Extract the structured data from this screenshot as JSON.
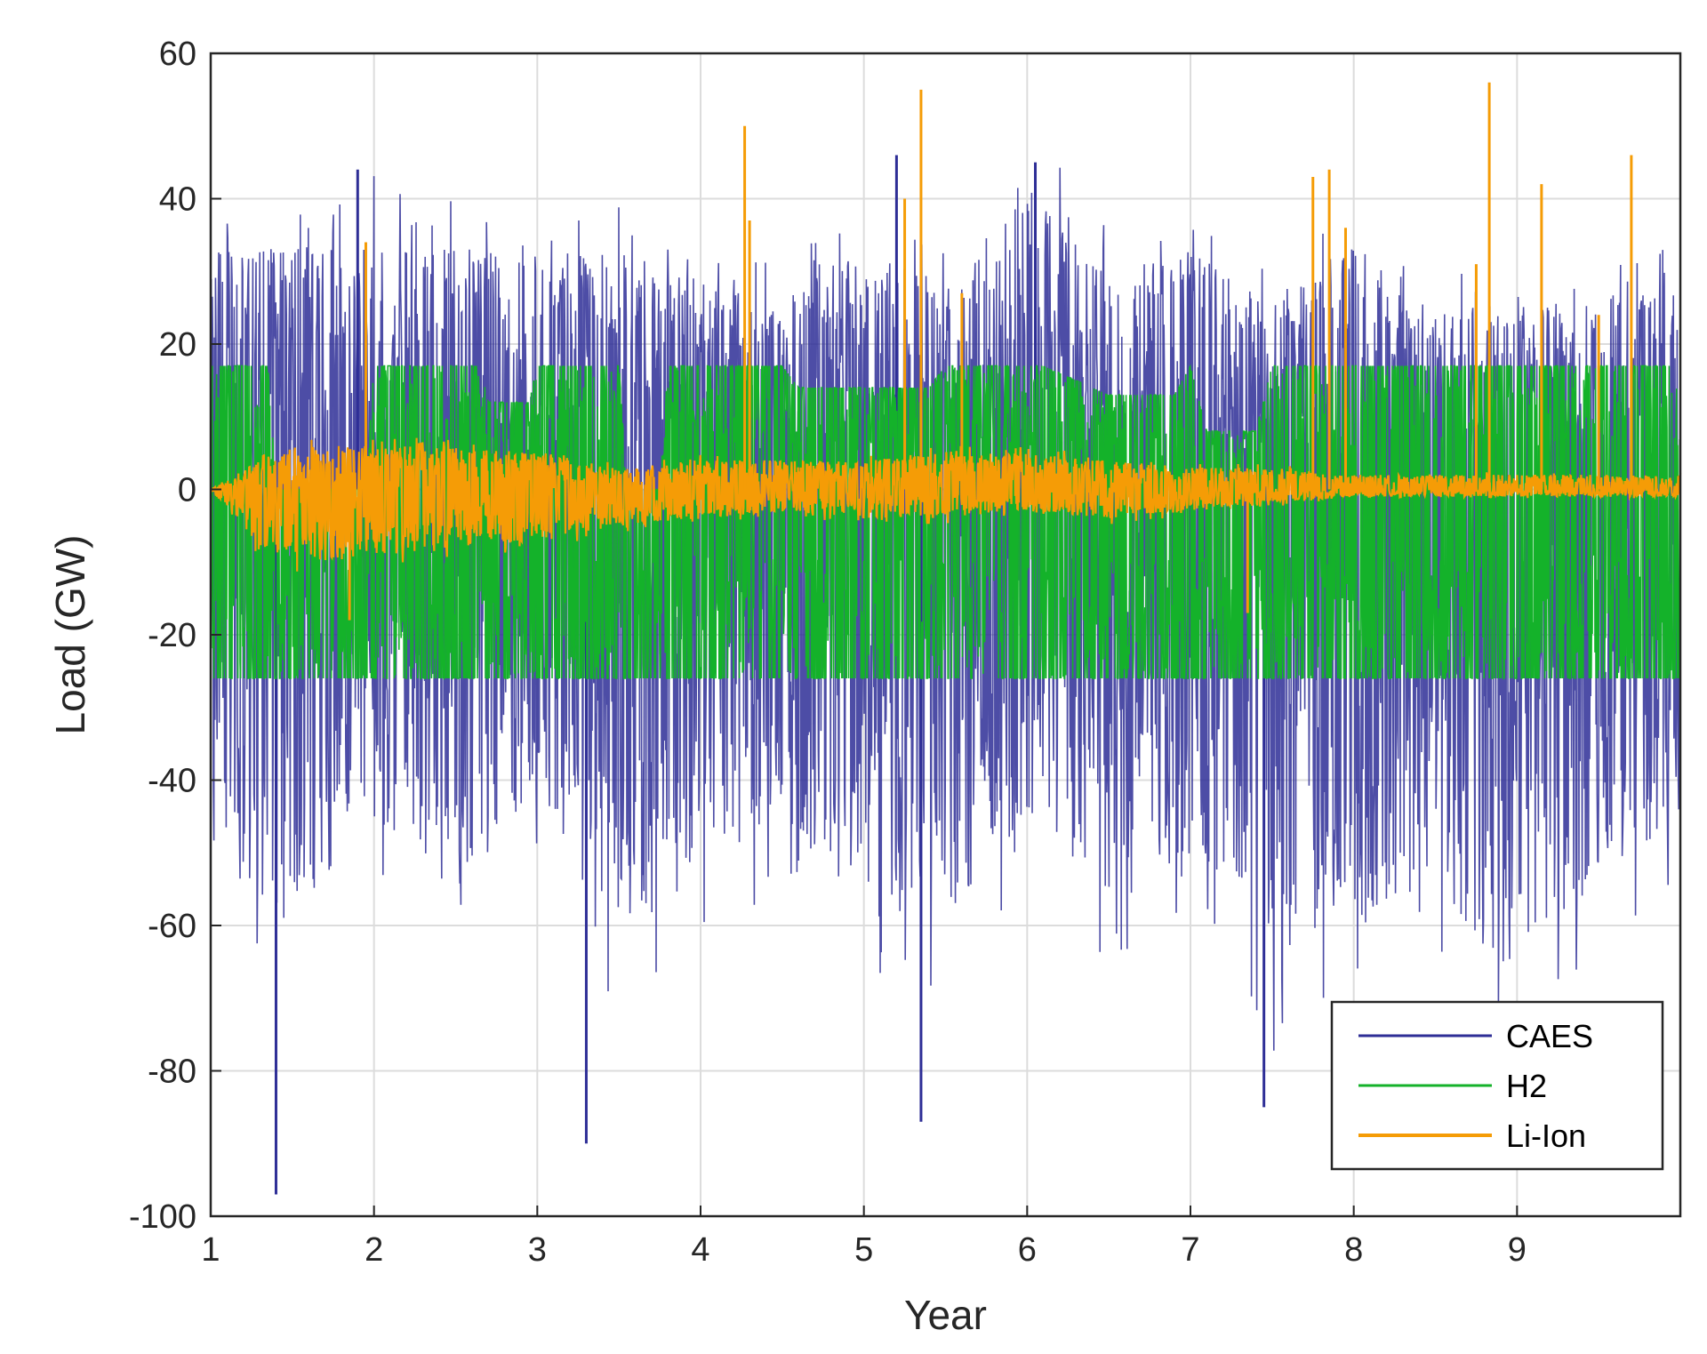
{
  "chart_data": {
    "type": "line",
    "title": "",
    "xlabel": "Year",
    "ylabel": "Load (GW)",
    "xlim": [
      1,
      10
    ],
    "ylim": [
      -100,
      60
    ],
    "xticks": [
      1,
      2,
      3,
      4,
      5,
      6,
      7,
      8,
      9
    ],
    "yticks": [
      -100,
      -80,
      -60,
      -40,
      -20,
      0,
      20,
      40,
      60
    ],
    "grid": true,
    "legend_position": "bottom-right",
    "series": [
      {
        "name": "CAES",
        "color": "#2e2e96",
        "approx_upper_envelope": [
          [
            1,
            33
          ],
          [
            1.5,
            33
          ],
          [
            2,
            36
          ],
          [
            2.5,
            33
          ],
          [
            3,
            35
          ],
          [
            3.5,
            33
          ],
          [
            4,
            29
          ],
          [
            4.5,
            26
          ],
          [
            5,
            33
          ],
          [
            5.5,
            28
          ],
          [
            6,
            42
          ],
          [
            6.5,
            30
          ],
          [
            7,
            34
          ],
          [
            7.5,
            25
          ],
          [
            8,
            34
          ],
          [
            8.5,
            24
          ],
          [
            9,
            27
          ],
          [
            9.5,
            26
          ],
          [
            10,
            28
          ]
        ],
        "approx_lower_envelope": [
          [
            1,
            -50
          ],
          [
            1.5,
            -60
          ],
          [
            2,
            -45
          ],
          [
            2.5,
            -55
          ],
          [
            3,
            -42
          ],
          [
            3.5,
            -60
          ],
          [
            4,
            -50
          ],
          [
            4.5,
            -48
          ],
          [
            5,
            -55
          ],
          [
            5.5,
            -60
          ],
          [
            6,
            -45
          ],
          [
            6.5,
            -55
          ],
          [
            7,
            -50
          ],
          [
            7.5,
            -65
          ],
          [
            8,
            -60
          ],
          [
            8.5,
            -58
          ],
          [
            9,
            -62
          ],
          [
            9.5,
            -55
          ],
          [
            10,
            -45
          ]
        ],
        "notable_values": [
          [
            1.4,
            -97
          ],
          [
            1.9,
            44
          ],
          [
            3.3,
            -90
          ],
          [
            5.35,
            -87
          ],
          [
            5.2,
            46
          ],
          [
            6.05,
            45
          ],
          [
            7.45,
            -85
          ]
        ]
      },
      {
        "name": "H2",
        "color": "#14b22a",
        "max_value": 17,
        "min_value": -26,
        "approx_upper_envelope": [
          [
            1,
            17
          ],
          [
            1.35,
            17
          ],
          [
            1.4,
            0
          ],
          [
            1.95,
            0
          ],
          [
            2,
            17
          ],
          [
            2.65,
            17
          ],
          [
            2.7,
            12
          ],
          [
            2.95,
            12
          ],
          [
            3,
            17
          ],
          [
            3.5,
            17
          ],
          [
            3.55,
            0
          ],
          [
            3.75,
            0
          ],
          [
            3.8,
            17
          ],
          [
            4.5,
            17
          ],
          [
            4.6,
            14
          ],
          [
            5.4,
            14
          ],
          [
            5.5,
            17
          ],
          [
            6,
            17
          ],
          [
            6.1,
            17
          ],
          [
            6.5,
            13
          ],
          [
            6.9,
            13
          ],
          [
            7,
            17
          ],
          [
            7.1,
            8
          ],
          [
            7.4,
            8
          ],
          [
            7.5,
            17
          ],
          [
            8,
            17
          ],
          [
            8.5,
            17
          ],
          [
            9,
            17
          ],
          [
            9.6,
            17
          ],
          [
            10,
            17
          ]
        ],
        "approx_lower_envelope": [
          [
            1,
            -26
          ],
          [
            2,
            -26
          ],
          [
            3,
            -26
          ],
          [
            4,
            -26
          ],
          [
            5,
            -26
          ],
          [
            6,
            -26
          ],
          [
            7,
            -26
          ],
          [
            8,
            -26
          ],
          [
            9,
            -26
          ],
          [
            10,
            -26
          ]
        ]
      },
      {
        "name": "Li-Ion",
        "color": "#f59c06",
        "approx_upper_envelope": [
          [
            1,
            0
          ],
          [
            1.3,
            4
          ],
          [
            1.6,
            6
          ],
          [
            2,
            6
          ],
          [
            2.5,
            6
          ],
          [
            3,
            5
          ],
          [
            3.5,
            3
          ],
          [
            4,
            4
          ],
          [
            4.5,
            4
          ],
          [
            5,
            4
          ],
          [
            5.5,
            5
          ],
          [
            6,
            5
          ],
          [
            6.5,
            4
          ],
          [
            7,
            3
          ],
          [
            7.5,
            3
          ],
          [
            8,
            2
          ],
          [
            8.5,
            2
          ],
          [
            9,
            2
          ],
          [
            9.5,
            2
          ],
          [
            10,
            2
          ]
        ],
        "approx_lower_envelope": [
          [
            1,
            0
          ],
          [
            1.3,
            -8
          ],
          [
            1.6,
            -10
          ],
          [
            2,
            -9
          ],
          [
            2.5,
            -8
          ],
          [
            3,
            -7
          ],
          [
            3.5,
            -5
          ],
          [
            4,
            -4
          ],
          [
            4.5,
            -3
          ],
          [
            5,
            -4
          ],
          [
            5.5,
            -4
          ],
          [
            6,
            -3
          ],
          [
            6.5,
            -4
          ],
          [
            7,
            -3
          ],
          [
            7.5,
            -2
          ],
          [
            8,
            -1
          ],
          [
            8.5,
            -1
          ],
          [
            9,
            -1
          ],
          [
            9.5,
            -1
          ],
          [
            10,
            -1
          ]
        ],
        "notable_values": [
          [
            1.95,
            34
          ],
          [
            4.27,
            50
          ],
          [
            4.3,
            37
          ],
          [
            5.25,
            40
          ],
          [
            5.35,
            55
          ],
          [
            5.6,
            27
          ],
          [
            7.75,
            43
          ],
          [
            7.85,
            44
          ],
          [
            7.95,
            36
          ],
          [
            8.83,
            56
          ],
          [
            8.75,
            31
          ],
          [
            9.15,
            42
          ],
          [
            9.5,
            24
          ],
          [
            9.7,
            46
          ],
          [
            7.35,
            -17
          ],
          [
            1.85,
            -18
          ]
        ]
      }
    ]
  }
}
